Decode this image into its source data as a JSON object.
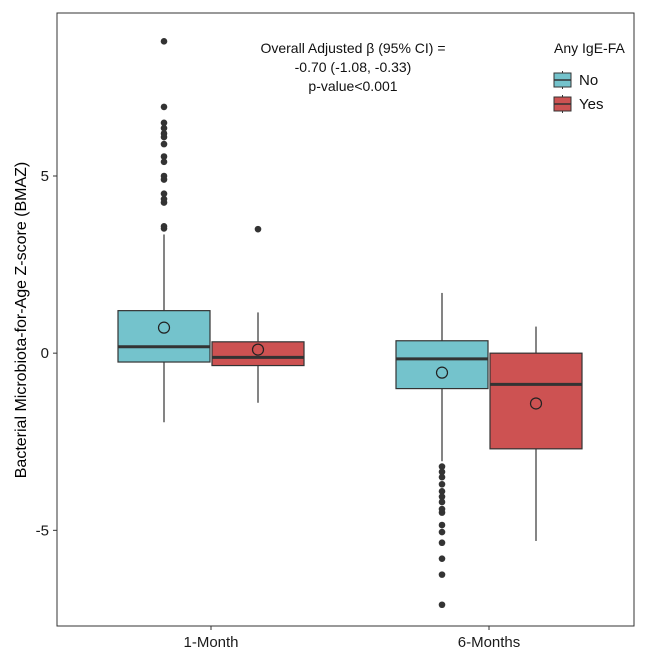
{
  "chart_data": {
    "type": "box",
    "title": "",
    "xlabel": "",
    "ylabel": "Bacterial Microbiota-for-Age Z-score (BMAZ)",
    "ylim": [
      -7.7,
      9.6
    ],
    "yticks": [
      -5,
      0,
      5
    ],
    "ytick_labels": [
      "-5",
      "0",
      "5"
    ],
    "categories": [
      "1-Month",
      "6-Months"
    ],
    "legend": {
      "title": "Any IgE-FA",
      "position": "top-right",
      "entries": [
        {
          "label": "No",
          "color": "#74C3CC"
        },
        {
          "label": "Yes",
          "color": "#CD5252"
        }
      ]
    },
    "annotation_lines": [
      "Overall Adjusted β (95% CI) =",
      "-0.70 (-1.08, -0.33)",
      "p-value<0.001"
    ],
    "grid": false,
    "series": [
      {
        "name": "No",
        "color": "#74C3CC",
        "boxes": [
          {
            "category": "1-Month",
            "whisker_low": -1.95,
            "q1": -0.25,
            "median": 0.18,
            "q3": 1.2,
            "whisker_high": 3.35,
            "mean": 0.72,
            "outliers": [
              3.52,
              3.58,
              4.25,
              4.35,
              4.5,
              4.9,
              5.0,
              5.4,
              5.55,
              5.9,
              6.1,
              6.2,
              6.35,
              6.5,
              6.95,
              8.8
            ]
          },
          {
            "category": "6-Months",
            "whisker_low": -3.05,
            "q1": -1.0,
            "median": -0.16,
            "q3": 0.35,
            "whisker_high": 1.7,
            "mean": -0.55,
            "outliers": [
              -3.2,
              -3.35,
              -3.5,
              -3.7,
              -3.9,
              -4.05,
              -4.2,
              -4.4,
              -4.5,
              -4.85,
              -5.05,
              -5.35,
              -5.8,
              -6.25,
              -7.1
            ]
          }
        ]
      },
      {
        "name": "Yes",
        "color": "#CD5252",
        "boxes": [
          {
            "category": "1-Month",
            "whisker_low": -1.4,
            "q1": -0.35,
            "median": -0.12,
            "q3": 0.32,
            "whisker_high": 1.15,
            "mean": 0.1,
            "outliers": [
              3.5
            ]
          },
          {
            "category": "6-Months",
            "whisker_low": -5.3,
            "q1": -2.7,
            "median": -0.88,
            "q3": 0.0,
            "whisker_high": 0.75,
            "mean": -1.42,
            "outliers": []
          }
        ]
      }
    ]
  }
}
